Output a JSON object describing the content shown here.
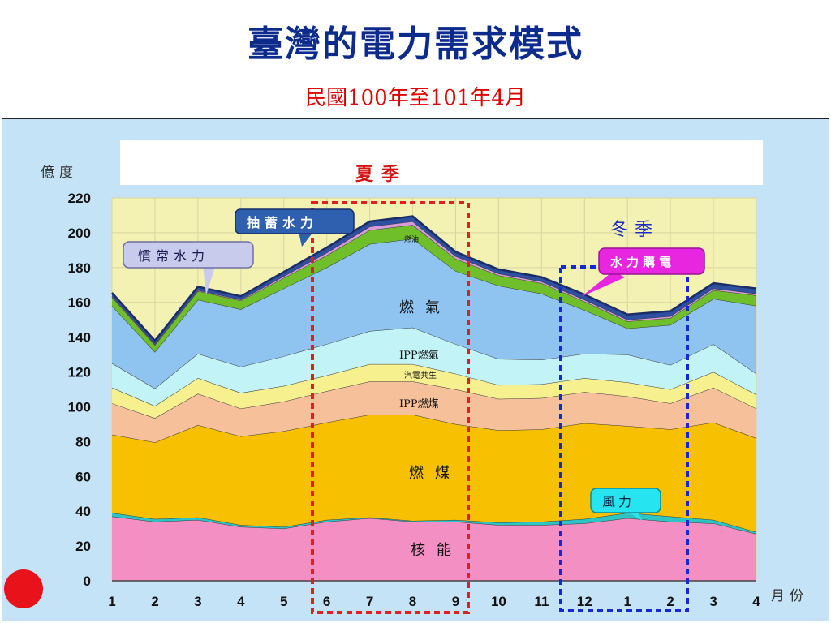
{
  "slide": {
    "title": "臺灣的電力需求模式",
    "subtitle": "民國100年至101年4月"
  },
  "chart_data": {
    "type": "area",
    "stacked": true,
    "ylabel": "億度",
    "xlabel": "月份",
    "ylim": [
      0,
      220
    ],
    "yticks": [
      0,
      20,
      40,
      60,
      80,
      100,
      120,
      140,
      160,
      180,
      200,
      220
    ],
    "categories": [
      "1",
      "2",
      "3",
      "4",
      "5",
      "6",
      "7",
      "8",
      "9",
      "10",
      "11",
      "12",
      "1",
      "2",
      "3",
      "4"
    ],
    "series": [
      {
        "name": "核能",
        "color": "#f48fc4",
        "values": [
          37,
          34,
          35,
          31,
          30,
          34,
          36,
          34,
          34,
          32,
          32,
          33,
          36,
          34,
          33,
          27
        ]
      },
      {
        "name": "風力",
        "color": "#2fc4c4",
        "values": [
          2,
          1.5,
          1.5,
          1,
          1,
          1,
          0.5,
          0.5,
          1,
          1.5,
          2,
          2.5,
          3,
          3,
          2,
          1
        ]
      },
      {
        "name": "燃煤",
        "color": "#f7c000",
        "values": [
          45,
          44,
          53,
          51,
          55,
          56,
          59,
          61,
          55,
          53,
          53,
          55,
          50,
          50,
          56,
          54
        ]
      },
      {
        "name": "IPP燃煤",
        "color": "#f5c09a",
        "values": [
          18,
          14,
          18,
          16,
          17,
          18,
          19,
          19,
          20,
          18,
          18,
          18,
          17,
          15,
          20,
          17
        ]
      },
      {
        "name": "汽電共生",
        "color": "#f7f08e",
        "values": [
          9,
          7,
          9,
          9,
          9,
          9,
          10,
          10,
          9,
          8,
          8,
          8,
          8,
          8,
          9,
          8
        ]
      },
      {
        "name": "IPP燃氣",
        "color": "#c2f4f7",
        "values": [
          14,
          10,
          14,
          15,
          17,
          18,
          19,
          21,
          17,
          15,
          14,
          14,
          16,
          14,
          16,
          12
        ]
      },
      {
        "name": "燃氣",
        "color": "#8ec4ef",
        "values": [
          33,
          21,
          31,
          33,
          39,
          44,
          50,
          51,
          42,
          42,
          38,
          25,
          15,
          23,
          26,
          39
        ]
      },
      {
        "name": "慣常水力",
        "color": "#6fbf2a",
        "values": [
          5,
          4,
          5,
          5,
          6,
          7,
          8,
          8,
          7,
          6,
          6,
          5,
          4,
          4,
          5,
          6
        ]
      },
      {
        "name": "水力購電",
        "color": "#d89ad8",
        "values": [
          0.5,
          0.5,
          0.5,
          0.5,
          1,
          1.5,
          2,
          2,
          1.5,
          1,
          1,
          1,
          1,
          1,
          1,
          1
        ]
      },
      {
        "name": "抽蓄水力",
        "color": "#2f4fa0",
        "values": [
          2,
          2,
          2,
          2,
          2.5,
          3,
          3,
          3,
          2.5,
          2.5,
          2.5,
          3,
          3,
          3,
          3,
          3
        ]
      }
    ],
    "annotations": {
      "summer": "夏季",
      "winter": "冬季",
      "tiny_label": "燃油"
    }
  },
  "colors": {
    "title": "#0d2b8c",
    "subtitle": "#e00000",
    "plot_bg": "#f3f2b2",
    "frame_bg": "#c5e3f6",
    "summer_box": "#e02020",
    "winter_box": "#1428d6",
    "summer_label": "#d41414",
    "winter_label": "#1c2ac6"
  }
}
